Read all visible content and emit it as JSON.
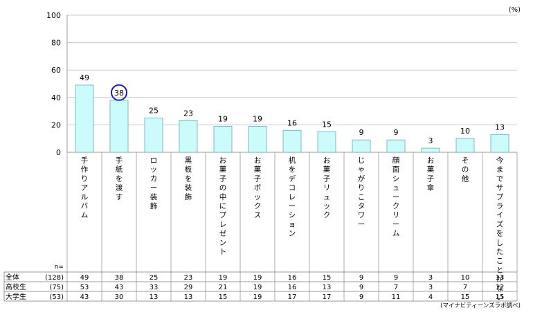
{
  "chart_data": {
    "type": "bar",
    "unit_label": "(%)",
    "ylim": [
      0,
      100
    ],
    "y_ticks": [
      0,
      20,
      40,
      60,
      80,
      100
    ],
    "grid": true,
    "bar_color": "#ccfbfb",
    "bar_border_color": "#6aa8b8",
    "highlight_color": "#1a1acc",
    "highlight_category_index": 1,
    "categories": [
      "手作りアルバム",
      "手紙を渡す",
      "ロッカー装飾",
      "黒板を装飾",
      "お菓子の中にプレゼント",
      "お菓子ボックス",
      "机をデコレーション",
      "お菓子リュック",
      "じゃがりこタワー",
      "顔面シュークリーム",
      "お菓子傘",
      "その他",
      "今までサプライズをしたことがない"
    ],
    "values": [
      49,
      38,
      25,
      23,
      19,
      19,
      16,
      15,
      9,
      9,
      3,
      10,
      13
    ],
    "table": {
      "n_label": "n=",
      "rows": [
        {
          "name": "全体",
          "n": "(128)",
          "values": [
            49,
            38,
            25,
            23,
            19,
            19,
            16,
            15,
            9,
            9,
            3,
            10,
            13
          ]
        },
        {
          "name": "高校生",
          "n": "(75)",
          "values": [
            53,
            43,
            33,
            29,
            21,
            19,
            16,
            13,
            9,
            7,
            3,
            7,
            12
          ]
        },
        {
          "name": "大学生",
          "n": "(53)",
          "values": [
            43,
            30,
            13,
            13,
            15,
            19,
            17,
            17,
            9,
            11,
            4,
            15,
            15
          ]
        }
      ]
    },
    "source": "(マイナビティーンズラボ調べ)"
  }
}
